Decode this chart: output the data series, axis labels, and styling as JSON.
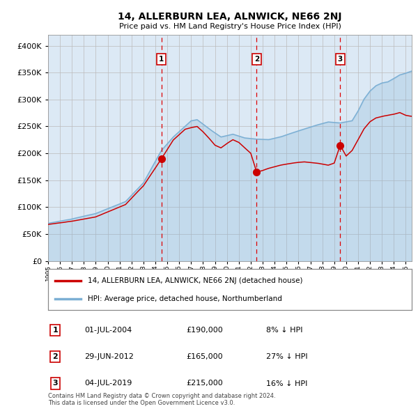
{
  "title": "14, ALLERBURN LEA, ALNWICK, NE66 2NJ",
  "subtitle": "Price paid vs. HM Land Registry's House Price Index (HPI)",
  "legend_property": "14, ALLERBURN LEA, ALNWICK, NE66 2NJ (detached house)",
  "legend_hpi": "HPI: Average price, detached house, Northumberland",
  "ytick_values": [
    0,
    50000,
    100000,
    150000,
    200000,
    250000,
    300000,
    350000,
    400000
  ],
  "ylim": [
    0,
    420000
  ],
  "hpi_color": "#7bafd4",
  "property_color": "#cc0000",
  "dashed_line_color": "#dd0000",
  "bg_color": "#dce9f5",
  "sale_points": [
    {
      "date_num": 2004.5,
      "price": 190000,
      "label": "1",
      "date_str": "01-JUL-2004",
      "pct": "8%",
      "dir": "↓"
    },
    {
      "date_num": 2012.49,
      "price": 165000,
      "label": "2",
      "date_str": "29-JUN-2012",
      "pct": "27%",
      "dir": "↓"
    },
    {
      "date_num": 2019.5,
      "price": 215000,
      "label": "3",
      "date_str": "04-JUL-2019",
      "pct": "16%",
      "dir": "↓"
    }
  ],
  "footer": "Contains HM Land Registry data © Crown copyright and database right 2024.\nThis data is licensed under the Open Government Licence v3.0.",
  "xstart": 1995.0,
  "xend": 2025.5
}
